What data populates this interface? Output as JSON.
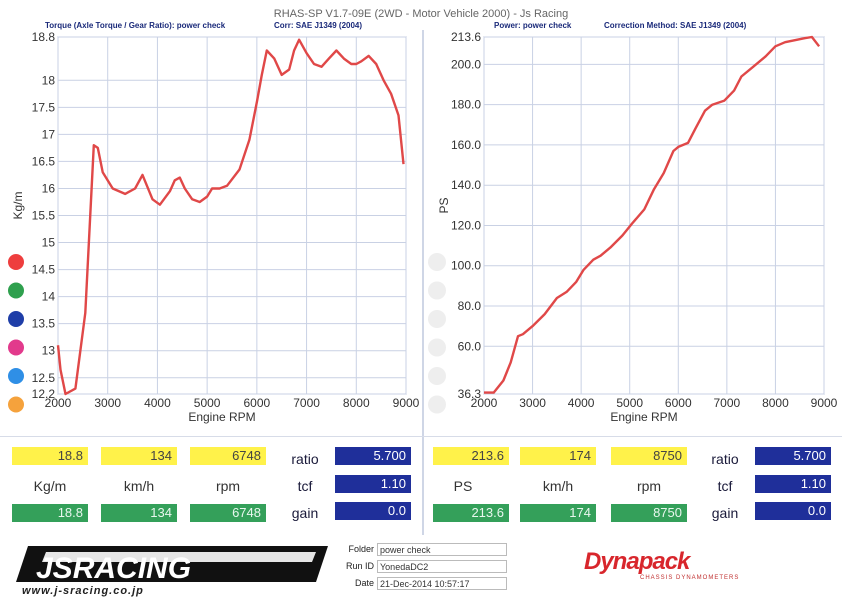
{
  "header": {
    "title": "RHAS-SP V1.7-09E  (2WD - Motor Vehicle 2000) - Js Racing",
    "left_sub1": "Torque (Axle Torque / Gear Ratio): power check",
    "left_sub2": "Corr: SAE J1349 (2004)",
    "right_sub1": "Power: power check",
    "right_sub2": "Correction Method: SAE J1349 (2004)"
  },
  "chart_data": [
    {
      "type": "line",
      "xlabel": "Engine RPM",
      "ylabel": "Kg/m",
      "xlim": [
        2000,
        9000
      ],
      "ylim": [
        12.2,
        18.8
      ],
      "x_ticks": [
        2000,
        3000,
        4000,
        5000,
        6000,
        7000,
        8000,
        9000
      ],
      "y_ticks": [
        12.2,
        12.5,
        13.0,
        13.5,
        14.0,
        14.5,
        15.0,
        15.5,
        16.0,
        16.5,
        17.0,
        17.5,
        18.0,
        18.8
      ],
      "grid": true,
      "color": "#e04848",
      "x": [
        2000,
        2050,
        2150,
        2350,
        2550,
        2720,
        2800,
        2900,
        3100,
        3350,
        3550,
        3700,
        3900,
        4050,
        4250,
        4350,
        4450,
        4550,
        4700,
        4850,
        5000,
        5100,
        5250,
        5400,
        5650,
        5850,
        6000,
        6100,
        6200,
        6350,
        6500,
        6650,
        6750,
        6850,
        7000,
        7150,
        7300,
        7450,
        7600,
        7750,
        7900,
        8000,
        8100,
        8250,
        8400,
        8550,
        8700,
        8850,
        8950
      ],
      "y": [
        13.1,
        12.65,
        12.2,
        12.3,
        13.7,
        16.8,
        16.75,
        16.3,
        16.0,
        15.9,
        16.0,
        16.25,
        15.8,
        15.7,
        15.95,
        16.15,
        16.2,
        16.0,
        15.8,
        15.75,
        15.85,
        16.0,
        16.0,
        16.05,
        16.35,
        16.9,
        17.6,
        18.1,
        18.55,
        18.4,
        18.1,
        18.2,
        18.55,
        18.75,
        18.5,
        18.3,
        18.25,
        18.4,
        18.55,
        18.4,
        18.3,
        18.3,
        18.35,
        18.45,
        18.3,
        18.0,
        17.75,
        17.35,
        16.45
      ]
    },
    {
      "type": "line",
      "xlabel": "Engine RPM",
      "ylabel": "PS",
      "xlim": [
        2000,
        9000
      ],
      "ylim": [
        36.3,
        213.6
      ],
      "x_ticks": [
        2000,
        3000,
        4000,
        5000,
        6000,
        7000,
        8000,
        9000
      ],
      "y_ticks": [
        36.3,
        60.0,
        80.0,
        100.0,
        120.0,
        140.0,
        160.0,
        180.0,
        200.0,
        213.6
      ],
      "grid": true,
      "color": "#e04848",
      "x": [
        2000,
        2200,
        2400,
        2550,
        2700,
        2800,
        3000,
        3250,
        3500,
        3700,
        3900,
        4050,
        4250,
        4400,
        4600,
        4850,
        5050,
        5300,
        5500,
        5700,
        5900,
        6000,
        6200,
        6350,
        6550,
        6700,
        6950,
        7150,
        7300,
        7550,
        7800,
        8000,
        8200,
        8400,
        8600,
        8750,
        8900
      ],
      "y": [
        37,
        37,
        43,
        52,
        65,
        66,
        70,
        76,
        84,
        87,
        92,
        98,
        103,
        105,
        109,
        115,
        121,
        128,
        138,
        146,
        157,
        159,
        161,
        168,
        177,
        180,
        182,
        187,
        194,
        199,
        204,
        209,
        211,
        212,
        213,
        213.6,
        209
      ]
    }
  ],
  "left_panel": {
    "torque_top": "18.8",
    "speed_top": "134",
    "rpm_top": "6748",
    "torque_unit": "Kg/m",
    "speed_unit": "km/h",
    "rpm_unit": "rpm",
    "torque_bottom": "18.8",
    "speed_bottom": "134",
    "rpm_bottom": "6748",
    "ratio_label": "ratio",
    "ratio_value": "5.700",
    "tcf_label": "tcf",
    "tcf_value": "1.10",
    "gain_label": "gain",
    "gain_value": "0.0"
  },
  "right_panel": {
    "power_top": "213.6",
    "speed_top": "174",
    "rpm_top": "8750",
    "power_unit": "PS",
    "speed_unit": "km/h",
    "rpm_unit": "rpm",
    "power_bottom": "213.6",
    "speed_bottom": "174",
    "rpm_bottom": "8750",
    "ratio_label": "ratio",
    "ratio_value": "5.700",
    "tcf_label": "tcf",
    "tcf_value": "1.10",
    "gain_label": "gain",
    "gain_value": "0.0"
  },
  "legend_colors": [
    "#ee3e3e",
    "#2fa04e",
    "#1f3ea8",
    "#e23a8c",
    "#2f8fe6",
    "#f5a23c"
  ],
  "footer": {
    "logo_text": "JSRACING",
    "logo_url": "www.j-sracing.co.jp",
    "folder_label": "Folder",
    "folder_value": "power check",
    "runid_label": "Run ID",
    "runid_value": "YonedaDC2",
    "date_label": "Date",
    "date_value": "21-Dec-2014  10:57:17",
    "brand": "Dynapack",
    "brand_sub": "CHASSIS DYNAMOMETERS"
  }
}
